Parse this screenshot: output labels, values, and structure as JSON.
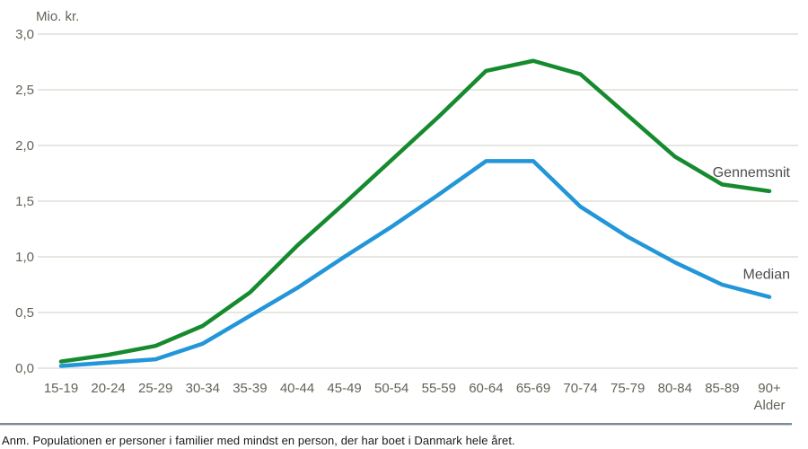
{
  "chart": {
    "y_axis_unit_label": "Mio. kr.",
    "x_axis_title": "Alder",
    "note": "Anm. Populationen er personer i familier med mindst en person, der har boet i Danmark hele året."
  },
  "chart_data": {
    "type": "line",
    "title": "",
    "ylabel": "Mio. kr.",
    "xlabel": "Alder",
    "ylim": [
      0,
      3.0
    ],
    "ytick_step": 0.5,
    "ytick_labels": [
      "0,0",
      "0,5",
      "1,0",
      "1,5",
      "2,0",
      "2,5",
      "3,0"
    ],
    "grid": true,
    "legend_position": "line-end-labels",
    "categories": [
      "15-19",
      "20-24",
      "25-29",
      "30-34",
      "35-39",
      "40-44",
      "45-49",
      "50-54",
      "55-59",
      "60-64",
      "65-69",
      "70-74",
      "75-79",
      "80-84",
      "85-89",
      "90+"
    ],
    "series": [
      {
        "name": "Gennemsnit",
        "color": "#168a2e",
        "values": [
          0.06,
          0.12,
          0.2,
          0.38,
          0.68,
          1.1,
          1.48,
          1.87,
          2.26,
          2.67,
          2.76,
          2.64,
          2.27,
          1.9,
          1.65,
          1.59
        ]
      },
      {
        "name": "Median",
        "color": "#2296d8",
        "values": [
          0.02,
          0.05,
          0.08,
          0.22,
          0.47,
          0.72,
          1.0,
          1.27,
          1.56,
          1.86,
          1.86,
          1.45,
          1.18,
          0.95,
          0.75,
          0.64
        ]
      }
    ]
  },
  "colors": {
    "background": "#ffffff",
    "grid": "#e7e7e1",
    "axis_text": "#63635a",
    "series_label_text": "#4d4d4d",
    "note_text": "#1a1a1a",
    "separator": "#7d8c96"
  }
}
